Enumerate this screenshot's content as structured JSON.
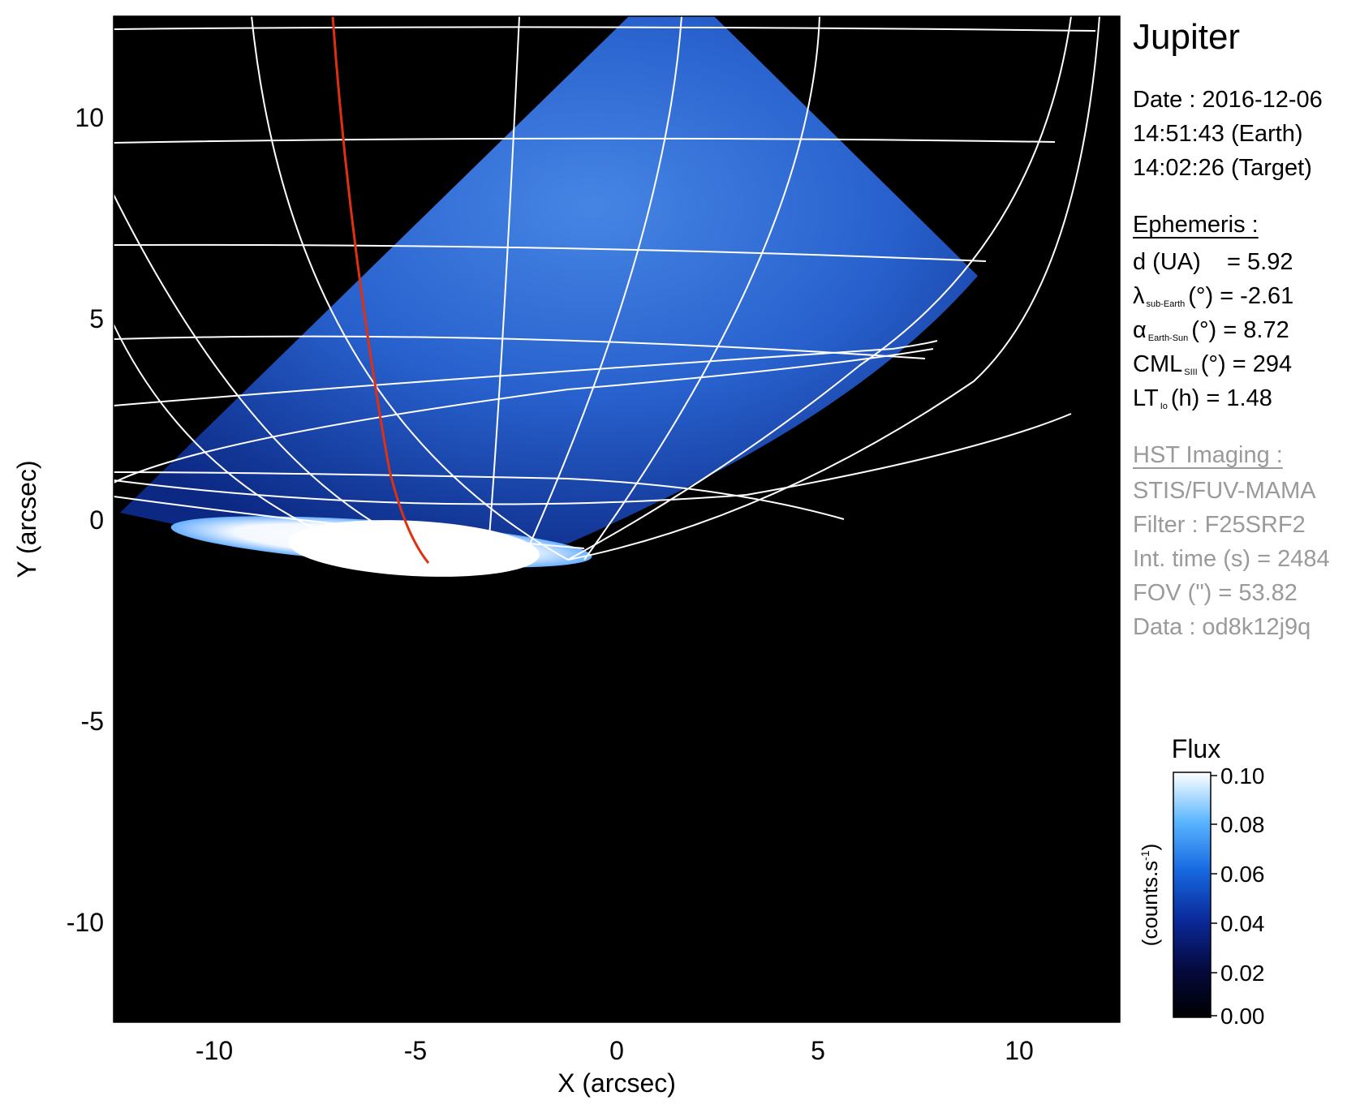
{
  "title": "Jupiter",
  "observation": {
    "date_line": "Date : 2016-12-06",
    "earth_time": "14:51:43 (Earth)",
    "target_time": "14:02:26 (Target)"
  },
  "ephemeris": {
    "header": "Ephemeris :",
    "rows": [
      {
        "label": "d (UA)",
        "sub": "",
        "unit": "",
        "value": "= 5.92"
      },
      {
        "label": "λ",
        "sub": "sub-Earth",
        "unit": "(°)",
        "value": "= -2.61"
      },
      {
        "label": "α",
        "sub": "Earth-Sun",
        "unit": "(°)",
        "value": "= 8.72"
      },
      {
        "label": "CML",
        "sub": "SIII",
        "unit": "(°)",
        "value": "= 294"
      },
      {
        "label": "LT",
        "sub": "Io",
        "unit": "(h)",
        "value": "= 1.48"
      }
    ]
  },
  "imaging": {
    "header": "HST Imaging :",
    "instrument": "STIS/FUV-MAMA",
    "filter": "Filter : F25SRF2",
    "int_time": "Int. time (s) = 2484",
    "fov": "FOV (\") = 53.82",
    "data_id": "Data : od8k12j9q"
  },
  "axes": {
    "xlabel": "X (arcsec)",
    "ylabel": "Y (arcsec)",
    "xticks": [
      "-10",
      "-5",
      "0",
      "5",
      "10"
    ],
    "yticks": [
      "10",
      "5",
      "0",
      "-5",
      "-10"
    ],
    "xlim": [
      -12.5,
      12.5
    ],
    "ylim": [
      -12.5,
      12.5
    ]
  },
  "colorbar": {
    "title": "Flux",
    "label": "(counts.s",
    "label_sup": "-1",
    "label_close": ")",
    "ticks": [
      "0.10",
      "0.08",
      "0.06",
      "0.04",
      "0.02",
      "0.00"
    ],
    "range": [
      0.0,
      0.1
    ]
  },
  "colors": {
    "background": "#000000",
    "disk_blue": "#1a5cd8",
    "grid": "#ffffff",
    "footprint": "#e03010"
  }
}
